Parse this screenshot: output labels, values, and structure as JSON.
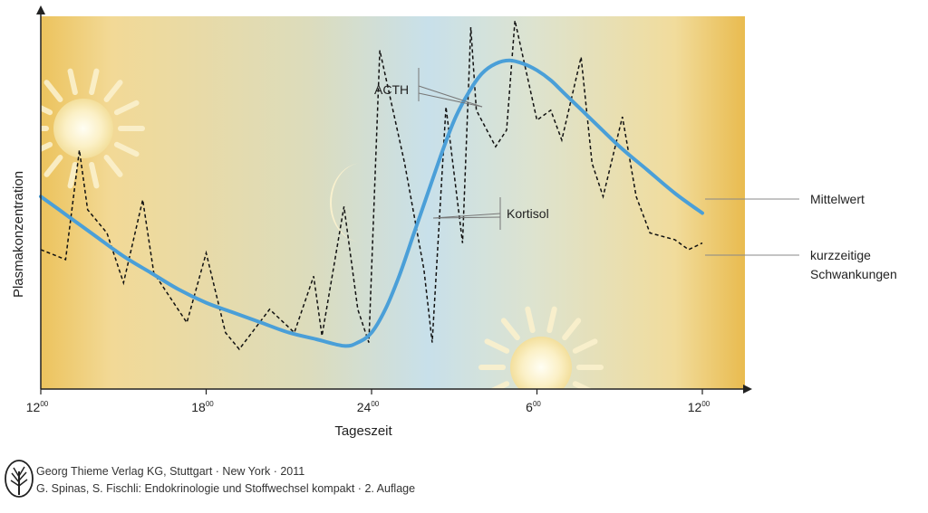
{
  "chart_data": {
    "type": "line",
    "title": "",
    "xlabel": "Tageszeit",
    "ylabel": "Plasmakonzentration",
    "x_ticks": [
      {
        "hour": 12,
        "label": "12",
        "sup": "00"
      },
      {
        "hour": 18,
        "label": "18",
        "sup": "00"
      },
      {
        "hour": 24,
        "label": "24",
        "sup": "00"
      },
      {
        "hour": 30,
        "label": "6",
        "sup": "00"
      },
      {
        "hour": 36,
        "label": "12",
        "sup": "00"
      }
    ],
    "xlim": [
      12,
      36
    ],
    "ylim": [
      0,
      1
    ],
    "grid": false,
    "series": [
      {
        "name": "Mittelwert",
        "style": "solid",
        "color": "#4a9fd8",
        "x": [
          12,
          13,
          14,
          15,
          16,
          17,
          18,
          19,
          20,
          21,
          22,
          23,
          23.5,
          24,
          24.5,
          25,
          25.5,
          26,
          26.5,
          27,
          27.5,
          28,
          28.5,
          29,
          29.5,
          30,
          30.5,
          31,
          32,
          33,
          34,
          35,
          36
        ],
        "y": [
          0.49,
          0.43,
          0.37,
          0.31,
          0.26,
          0.21,
          0.17,
          0.14,
          0.11,
          0.08,
          0.06,
          0.04,
          0.05,
          0.08,
          0.15,
          0.25,
          0.37,
          0.49,
          0.61,
          0.72,
          0.8,
          0.86,
          0.89,
          0.9,
          0.89,
          0.87,
          0.84,
          0.8,
          0.72,
          0.64,
          0.57,
          0.5,
          0.44
        ]
      },
      {
        "name": "kurzzeitige Schwankungen",
        "style": "dashed",
        "color": "#111111",
        "x": [
          12,
          12.9,
          13.4,
          13.7,
          14.4,
          15.0,
          15.7,
          16.1,
          17.3,
          18.0,
          18.7,
          19.2,
          20.3,
          21.2,
          21.9,
          22.2,
          23.0,
          23.5,
          23.9,
          24.3,
          25.2,
          25.9,
          26.2,
          26.7,
          27.3,
          27.6,
          27.8,
          28.5,
          28.9,
          29.2,
          30.0,
          30.5,
          30.9,
          31.6,
          32.0,
          32.4,
          33.1,
          33.6,
          34.1,
          35.0,
          35.5,
          36
        ],
        "y": [
          0.33,
          0.3,
          0.63,
          0.45,
          0.38,
          0.23,
          0.48,
          0.26,
          0.11,
          0.32,
          0.08,
          0.03,
          0.15,
          0.08,
          0.25,
          0.07,
          0.46,
          0.15,
          0.05,
          0.93,
          0.59,
          0.27,
          0.05,
          0.76,
          0.35,
          1.0,
          0.75,
          0.64,
          0.69,
          1.02,
          0.72,
          0.75,
          0.66,
          0.91,
          0.59,
          0.49,
          0.73,
          0.49,
          0.38,
          0.36,
          0.33,
          0.35
        ]
      }
    ],
    "annotations": [
      {
        "text": "ACTH",
        "points_to": "kurzzeitige Schwankungen"
      },
      {
        "text": "Kortisol",
        "points_to": "Mittelwert"
      }
    ],
    "legend": [
      {
        "label": "Mittelwert",
        "line": [
          "Mittelwert"
        ]
      },
      {
        "label": "kurzzeitige",
        "line": [
          "kurzzeitige Schwankungen"
        ]
      },
      {
        "label": "Schwankungen",
        "line": []
      }
    ],
    "background": {
      "day_color": "#f2d996",
      "night_color": "#cfe2ea",
      "edge_color": "#e8b84a",
      "symbols": [
        "sun-icon",
        "moon-icon",
        "sun-icon"
      ]
    }
  },
  "footer": {
    "publisher": "Georg Thieme Verlag KG, Stuttgart · New York · 2011",
    "source": "G. Spinas, S. Fischli: Endokrinologie und Stoffwechsel kompakt · 2. Auflage",
    "logo_icon": "thieme-tree-logo-icon"
  }
}
